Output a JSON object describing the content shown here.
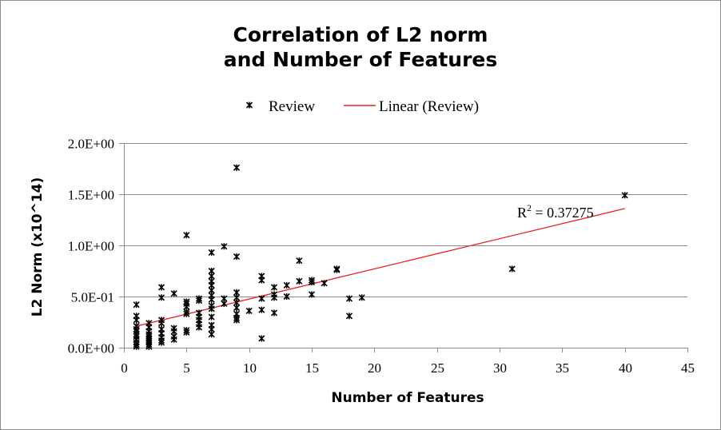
{
  "chart_data": {
    "type": "scatter",
    "title": [
      "Correlation of L2 norm",
      "and Number of Features"
    ],
    "xlabel": "Number of Features",
    "ylabel": "L2 Norm (x10^14)",
    "xlim": [
      0,
      45
    ],
    "ylim": [
      0,
      2.0
    ],
    "x_ticks": [
      0,
      5,
      10,
      15,
      20,
      25,
      30,
      35,
      40,
      45
    ],
    "y_ticks": [
      0,
      0.5,
      1.0,
      1.5,
      2.0
    ],
    "x_tick_labels": [
      "0",
      "5",
      "10",
      "15",
      "20",
      "25",
      "30",
      "35",
      "40",
      "45"
    ],
    "y_tick_labels": [
      "0.0E+00",
      "5.0E-01",
      "1.0E+00",
      "1.5E+00",
      "2.0E+00"
    ],
    "grid": "horizontal",
    "legend_position": "top",
    "legend": [
      {
        "label": "Review",
        "kind": "marker",
        "color": "#000000"
      },
      {
        "label": "Linear (Review)",
        "kind": "line",
        "color": "#e8201a"
      }
    ],
    "annotation": {
      "label": "R",
      "superscript": "2",
      "value_text": " = 0.37275"
    },
    "trendline": {
      "x": [
        1,
        40
      ],
      "y": [
        0.21,
        1.36
      ],
      "color": "#e8201a"
    },
    "series": [
      {
        "name": "Review",
        "marker": "x",
        "color": "#000000",
        "points": [
          [
            1,
            0.42
          ],
          [
            1,
            0.31
          ],
          [
            1,
            0.27
          ],
          [
            1,
            0.21
          ],
          [
            1,
            0.18
          ],
          [
            1,
            0.16
          ],
          [
            1,
            0.13
          ],
          [
            1,
            0.11
          ],
          [
            1,
            0.08
          ],
          [
            1,
            0.05
          ],
          [
            1,
            0.03
          ],
          [
            1,
            0.01
          ],
          [
            2,
            0.24
          ],
          [
            2,
            0.2
          ],
          [
            2,
            0.16
          ],
          [
            2,
            0.13
          ],
          [
            2,
            0.11
          ],
          [
            2,
            0.09
          ],
          [
            2,
            0.07
          ],
          [
            2,
            0.05
          ],
          [
            2,
            0.03
          ],
          [
            2,
            0.01
          ],
          [
            3,
            0.59
          ],
          [
            3,
            0.49
          ],
          [
            3,
            0.27
          ],
          [
            3,
            0.24
          ],
          [
            3,
            0.18
          ],
          [
            3,
            0.14
          ],
          [
            3,
            0.1
          ],
          [
            3,
            0.07
          ],
          [
            3,
            0.05
          ],
          [
            4,
            0.53
          ],
          [
            4,
            0.19
          ],
          [
            4,
            0.16
          ],
          [
            4,
            0.11
          ],
          [
            4,
            0.08
          ],
          [
            5,
            1.1
          ],
          [
            5,
            0.45
          ],
          [
            5,
            0.43
          ],
          [
            5,
            0.4
          ],
          [
            5,
            0.35
          ],
          [
            5,
            0.33
          ],
          [
            5,
            0.17
          ],
          [
            5,
            0.15
          ],
          [
            6,
            0.48
          ],
          [
            6,
            0.46
          ],
          [
            6,
            0.34
          ],
          [
            6,
            0.3
          ],
          [
            6,
            0.27
          ],
          [
            6,
            0.23
          ],
          [
            6,
            0.2
          ],
          [
            7,
            0.93
          ],
          [
            7,
            0.75
          ],
          [
            7,
            0.7
          ],
          [
            7,
            0.65
          ],
          [
            7,
            0.61
          ],
          [
            7,
            0.56
          ],
          [
            7,
            0.51
          ],
          [
            7,
            0.47
          ],
          [
            7,
            0.41
          ],
          [
            7,
            0.38
          ],
          [
            7,
            0.3
          ],
          [
            7,
            0.22
          ],
          [
            7,
            0.18
          ],
          [
            7,
            0.13
          ],
          [
            8,
            0.99
          ],
          [
            8,
            0.48
          ],
          [
            8,
            0.43
          ],
          [
            9,
            1.76
          ],
          [
            9,
            0.89
          ],
          [
            9,
            0.54
          ],
          [
            9,
            0.49
          ],
          [
            9,
            0.44
          ],
          [
            9,
            0.39
          ],
          [
            9,
            0.33
          ],
          [
            9,
            0.29
          ],
          [
            9,
            0.27
          ],
          [
            10,
            0.36
          ],
          [
            11,
            0.7
          ],
          [
            11,
            0.66
          ],
          [
            11,
            0.48
          ],
          [
            11,
            0.37
          ],
          [
            11,
            0.09
          ],
          [
            12,
            0.59
          ],
          [
            12,
            0.52
          ],
          [
            12,
            0.49
          ],
          [
            12,
            0.34
          ],
          [
            13,
            0.61
          ],
          [
            13,
            0.5
          ],
          [
            14,
            0.85
          ],
          [
            14,
            0.65
          ],
          [
            15,
            0.66
          ],
          [
            15,
            0.64
          ],
          [
            15,
            0.52
          ],
          [
            16,
            0.63
          ],
          [
            17,
            0.77
          ],
          [
            17,
            0.76
          ],
          [
            18,
            0.48
          ],
          [
            18,
            0.31
          ],
          [
            19,
            0.49
          ],
          [
            31,
            0.77
          ],
          [
            40,
            1.49
          ]
        ]
      }
    ]
  }
}
